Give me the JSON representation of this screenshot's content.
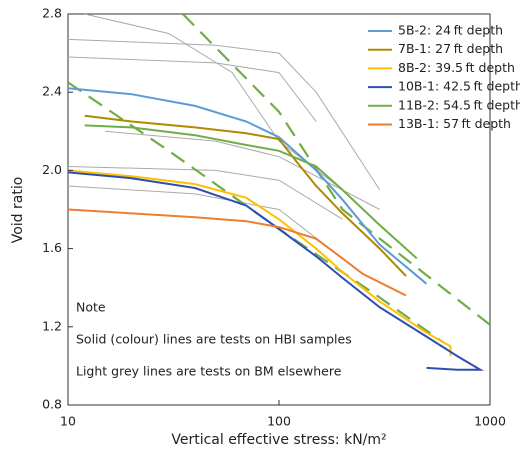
{
  "chart_data": {
    "type": "line",
    "x_label": "Vertical effective stress: kN/m²",
    "y_label": "Void ratio",
    "xscale": "log",
    "xlim": [
      10,
      1000
    ],
    "xticks": [
      10,
      100,
      1000
    ],
    "ylim": [
      0.8,
      2.8
    ],
    "yticks": [
      0.8,
      1.2,
      1.6,
      {
        "value": 2,
        "label": "2.0"
      },
      2.4,
      2.8
    ],
    "legend": "upper right",
    "series": [
      {
        "name": "5B-2: 24 ft depth",
        "color": "#5b9bd5",
        "x": [
          10,
          20,
          40,
          70,
          100,
          150,
          200,
          300,
          500
        ],
        "values": [
          2.42,
          2.39,
          2.33,
          2.25,
          2.17,
          2.0,
          1.85,
          1.62,
          1.42
        ]
      },
      {
        "name": "7B-1: 27 ft depth",
        "color": "#b08a00",
        "x": [
          12,
          20,
          40,
          70,
          100,
          120,
          150,
          200,
          300,
          400
        ],
        "values": [
          2.28,
          2.25,
          2.22,
          2.19,
          2.16,
          2.05,
          1.92,
          1.78,
          1.6,
          1.46
        ]
      },
      {
        "name": "8B-2: 39.5 ft depth",
        "color": "#ffc000",
        "x": [
          10,
          20,
          40,
          70,
          100,
          150,
          200,
          300,
          500,
          650,
          650
        ],
        "values": [
          2.0,
          1.97,
          1.93,
          1.86,
          1.75,
          1.6,
          1.48,
          1.33,
          1.17,
          1.1,
          1.05
        ]
      },
      {
        "name": "10B-1: 42.5 ft depth",
        "color": "#2f4fb0",
        "x": [
          10,
          20,
          40,
          70,
          100,
          150,
          200,
          300,
          500,
          700,
          900,
          700,
          500
        ],
        "values": [
          1.99,
          1.96,
          1.91,
          1.82,
          1.7,
          1.56,
          1.45,
          1.3,
          1.15,
          1.05,
          0.98,
          0.98,
          0.99
        ]
      },
      {
        "name": "11B-2: 54.5 ft depth",
        "color": "#70ad47",
        "x": [
          12,
          20,
          40,
          70,
          100,
          150,
          200,
          300,
          450
        ],
        "values": [
          2.23,
          2.22,
          2.18,
          2.13,
          2.1,
          2.02,
          1.9,
          1.72,
          1.55
        ]
      },
      {
        "name": "13B-1: 57 ft depth",
        "color": "#ed7d31",
        "x": [
          10,
          20,
          40,
          70,
          100,
          150,
          200,
          250,
          400
        ],
        "values": [
          1.8,
          1.78,
          1.76,
          1.74,
          1.71,
          1.65,
          1.55,
          1.47,
          1.36
        ]
      }
    ],
    "reference_lines": [
      {
        "color": "#aaaaaa",
        "style": "solid",
        "x": [
          12,
          30,
          60,
          100,
          200
        ],
        "values": [
          2.8,
          2.7,
          2.5,
          2.15,
          1.9
        ]
      },
      {
        "color": "#aaaaaa",
        "style": "solid",
        "x": [
          10,
          50,
          100,
          150,
          300
        ],
        "values": [
          2.67,
          2.64,
          2.6,
          2.4,
          1.9
        ]
      },
      {
        "color": "#aaaaaa",
        "style": "solid",
        "x": [
          10,
          50,
          100,
          150
        ],
        "values": [
          2.58,
          2.55,
          2.5,
          2.25
        ]
      },
      {
        "color": "#aaaaaa",
        "style": "solid",
        "x": [
          10,
          50,
          100,
          200
        ],
        "values": [
          2.02,
          2.0,
          1.95,
          1.75
        ]
      },
      {
        "color": "#aaaaaa",
        "style": "solid",
        "x": [
          15,
          50,
          100,
          300
        ],
        "values": [
          2.2,
          2.15,
          2.07,
          1.8
        ]
      },
      {
        "color": "#aaaaaa",
        "style": "solid",
        "x": [
          10,
          40,
          100,
          200
        ],
        "values": [
          1.92,
          1.88,
          1.8,
          1.55
        ]
      },
      {
        "color": "#70ad47",
        "style": "dashed",
        "x": [
          35,
          100,
          200,
          1000
        ],
        "values": [
          2.8,
          2.3,
          1.8,
          1.21
        ]
      },
      {
        "color": "#70ad47",
        "style": "dashed",
        "x": [
          10,
          30,
          100,
          300,
          600
        ],
        "values": [
          2.45,
          2.1,
          1.7,
          1.35,
          1.12
        ]
      }
    ],
    "annotations": [
      "Note",
      "Solid (colour) lines are tests on HBI samples",
      "Light grey lines are tests on BM elsewhere"
    ]
  }
}
